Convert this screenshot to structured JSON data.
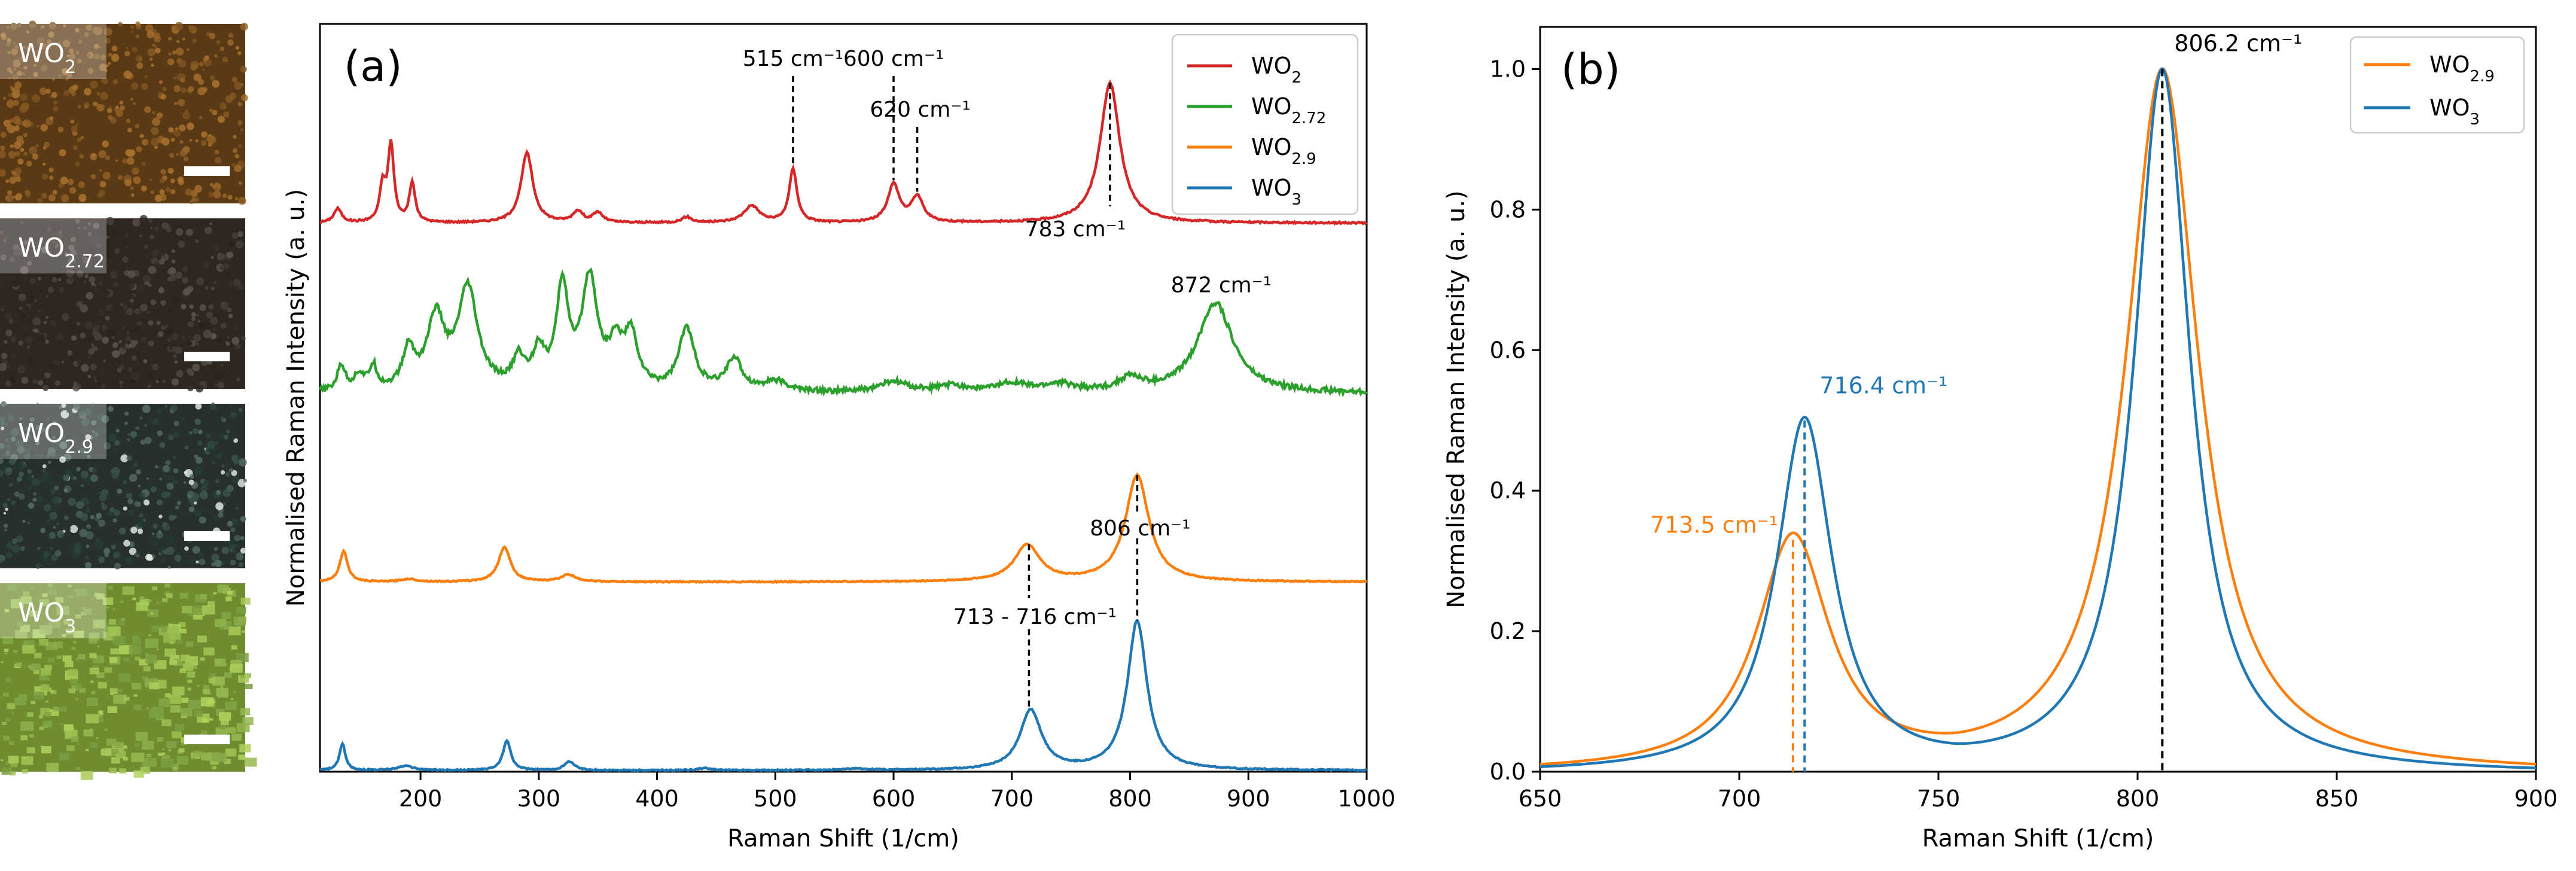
{
  "colors": {
    "wo2": "#d62728",
    "wo272": "#2ca02c",
    "wo29": "#ff7f0e",
    "wo3": "#1f77b4"
  },
  "micrographs": [
    {
      "label_base": "WO",
      "label_sub": "2",
      "tone": "#5a3a14"
    },
    {
      "label_base": "WO",
      "label_sub": "2.72",
      "tone": "#2f2620"
    },
    {
      "label_base": "WO",
      "label_sub": "2.9",
      "tone": "#27302d"
    },
    {
      "label_base": "WO",
      "label_sub": "3",
      "tone": "#6f8d2f"
    }
  ],
  "chart_data": [
    {
      "type": "line",
      "panel_label": "(a)",
      "xlabel": "Raman Shift (1/cm)",
      "ylabel": "Normalised Raman Intensity (a. u.)",
      "xlim": [
        115,
        1000
      ],
      "x_ticks": [
        200,
        300,
        400,
        500,
        600,
        700,
        800,
        900,
        1000
      ],
      "y_ticks_shown": false,
      "legend": {
        "position": "top-right",
        "entries": [
          {
            "base": "WO",
            "sub": "2",
            "color_key": "wo2"
          },
          {
            "base": "WO",
            "sub": "2.72",
            "color_key": "wo272"
          },
          {
            "base": "WO",
            "sub": "2.9",
            "color_key": "wo29"
          },
          {
            "base": "WO",
            "sub": "3",
            "color_key": "wo3"
          }
        ]
      },
      "series": [
        {
          "name": "WO2",
          "color_key": "wo2",
          "offset": 3.05,
          "scale": 0.78,
          "peaks": [
            [
              130,
              0.1,
              4
            ],
            [
              168,
              0.25,
              3
            ],
            [
              175,
              0.55,
              3
            ],
            [
              193,
              0.28,
              3
            ],
            [
              290,
              0.5,
              6
            ],
            [
              333,
              0.08,
              5
            ],
            [
              350,
              0.07,
              5
            ],
            [
              425,
              0.04,
              5
            ],
            [
              480,
              0.12,
              8
            ],
            [
              515,
              0.38,
              4
            ],
            [
              600,
              0.27,
              6
            ],
            [
              620,
              0.18,
              6
            ],
            [
              783,
              1.0,
              10
            ]
          ],
          "noise": 0.006
        },
        {
          "name": "WO2.72",
          "color_key": "wo272",
          "offset": 2.1,
          "scale": 0.72,
          "peaks": [
            [
              133,
              0.2,
              4
            ],
            [
              148,
              0.12,
              5
            ],
            [
              160,
              0.18,
              4
            ],
            [
              190,
              0.3,
              6
            ],
            [
              213,
              0.55,
              9
            ],
            [
              240,
              0.78,
              10
            ],
            [
              283,
              0.22,
              6
            ],
            [
              300,
              0.28,
              6
            ],
            [
              320,
              0.78,
              6
            ],
            [
              343,
              0.85,
              8
            ],
            [
              365,
              0.3,
              7
            ],
            [
              378,
              0.4,
              7
            ],
            [
              425,
              0.48,
              8
            ],
            [
              465,
              0.25,
              8
            ],
            [
              500,
              0.08,
              12
            ],
            [
              600,
              0.08,
              15
            ],
            [
              650,
              0.05,
              15
            ],
            [
              700,
              0.07,
              15
            ],
            [
              740,
              0.06,
              15
            ],
            [
              800,
              0.1,
              12
            ],
            [
              872,
              0.7,
              18
            ]
          ],
          "noise": 0.02
        },
        {
          "name": "WO2.9",
          "color_key": "wo29",
          "offset": 1.05,
          "scale": 0.78,
          "peaks": [
            [
              135,
              0.22,
              4
            ],
            [
              190,
              0.02,
              8
            ],
            [
              271,
              0.25,
              6
            ],
            [
              325,
              0.05,
              8
            ],
            [
              713,
              0.26,
              13
            ],
            [
              806,
              0.76,
              12
            ]
          ],
          "noise": 0.004
        },
        {
          "name": "WO3",
          "color_key": "wo3",
          "offset": 0.0,
          "scale": 0.83,
          "peaks": [
            [
              134,
              0.18,
              3
            ],
            [
              187,
              0.03,
              8
            ],
            [
              273,
              0.2,
              4
            ],
            [
              326,
              0.06,
              5
            ],
            [
              440,
              0.015,
              6
            ],
            [
              570,
              0.01,
              10
            ],
            [
              716,
              0.4,
              11
            ],
            [
              806,
              1.0,
              10
            ]
          ],
          "noise": 0.004
        }
      ],
      "annotations": [
        {
          "text": "515 cm⁻¹",
          "x": 515,
          "series": "WO2",
          "pos": "above"
        },
        {
          "text": "600 cm⁻¹",
          "x": 600,
          "series": "WO2",
          "pos": "above"
        },
        {
          "text": "620 cm⁻¹",
          "x": 620,
          "series": "WO2",
          "pos": "above"
        },
        {
          "text": "783 cm⁻¹",
          "x": 783,
          "series": "WO2",
          "pos": "below"
        },
        {
          "text": "872 cm⁻¹",
          "x": 872,
          "series": "WO2.72",
          "pos": "above"
        },
        {
          "text": "806 cm⁻¹",
          "x": 806,
          "series": "WO2.9",
          "pos": "between"
        },
        {
          "text": "713 - 716 cm⁻¹",
          "x": 714.5,
          "series": "WO3",
          "pos": "between"
        }
      ]
    },
    {
      "type": "line",
      "panel_label": "(b)",
      "xlabel": "Raman Shift (1/cm)",
      "ylabel": "Normalised Raman Intensity (a. u.)",
      "xlim": [
        650,
        900
      ],
      "ylim": [
        0.0,
        1.06
      ],
      "x_ticks": [
        650,
        700,
        750,
        800,
        850,
        900
      ],
      "y_ticks": [
        0.0,
        0.2,
        0.4,
        0.6,
        0.8,
        1.0
      ],
      "x_tick_labels": [
        "650",
        "700",
        "750",
        "800",
        "850",
        "900"
      ],
      "y_tick_labels": [
        "0.0",
        "0.2",
        "0.4",
        "0.6",
        "0.8",
        "1.0"
      ],
      "legend": {
        "position": "top-right",
        "entries": [
          {
            "base": "WO",
            "sub": "2.9",
            "color_key": "wo29"
          },
          {
            "base": "WO",
            "sub": "3",
            "color_key": "wo3"
          }
        ]
      },
      "series": [
        {
          "name": "WO2.9",
          "color_key": "wo29",
          "peaks": [
            [
              713.5,
              0.33,
              11
            ],
            [
              806.2,
              1.0,
              11
            ]
          ],
          "baseline_min": 755
        },
        {
          "name": "WO3",
          "color_key": "wo3",
          "peaks": [
            [
              716.4,
              0.5,
              8.5
            ],
            [
              806.2,
              1.0,
              8.5
            ]
          ],
          "baseline_min": 755
        }
      ],
      "annotations": [
        {
          "text": "806.2 cm⁻¹",
          "x": 806.2,
          "y": 1.0,
          "color_key": "black"
        },
        {
          "text": "716.4 cm⁻¹",
          "x": 716.4,
          "y": 0.5,
          "color_key": "wo3"
        },
        {
          "text": "713.5 cm⁻¹",
          "x": 713.5,
          "y": 0.33,
          "color_key": "wo29"
        }
      ]
    }
  ]
}
